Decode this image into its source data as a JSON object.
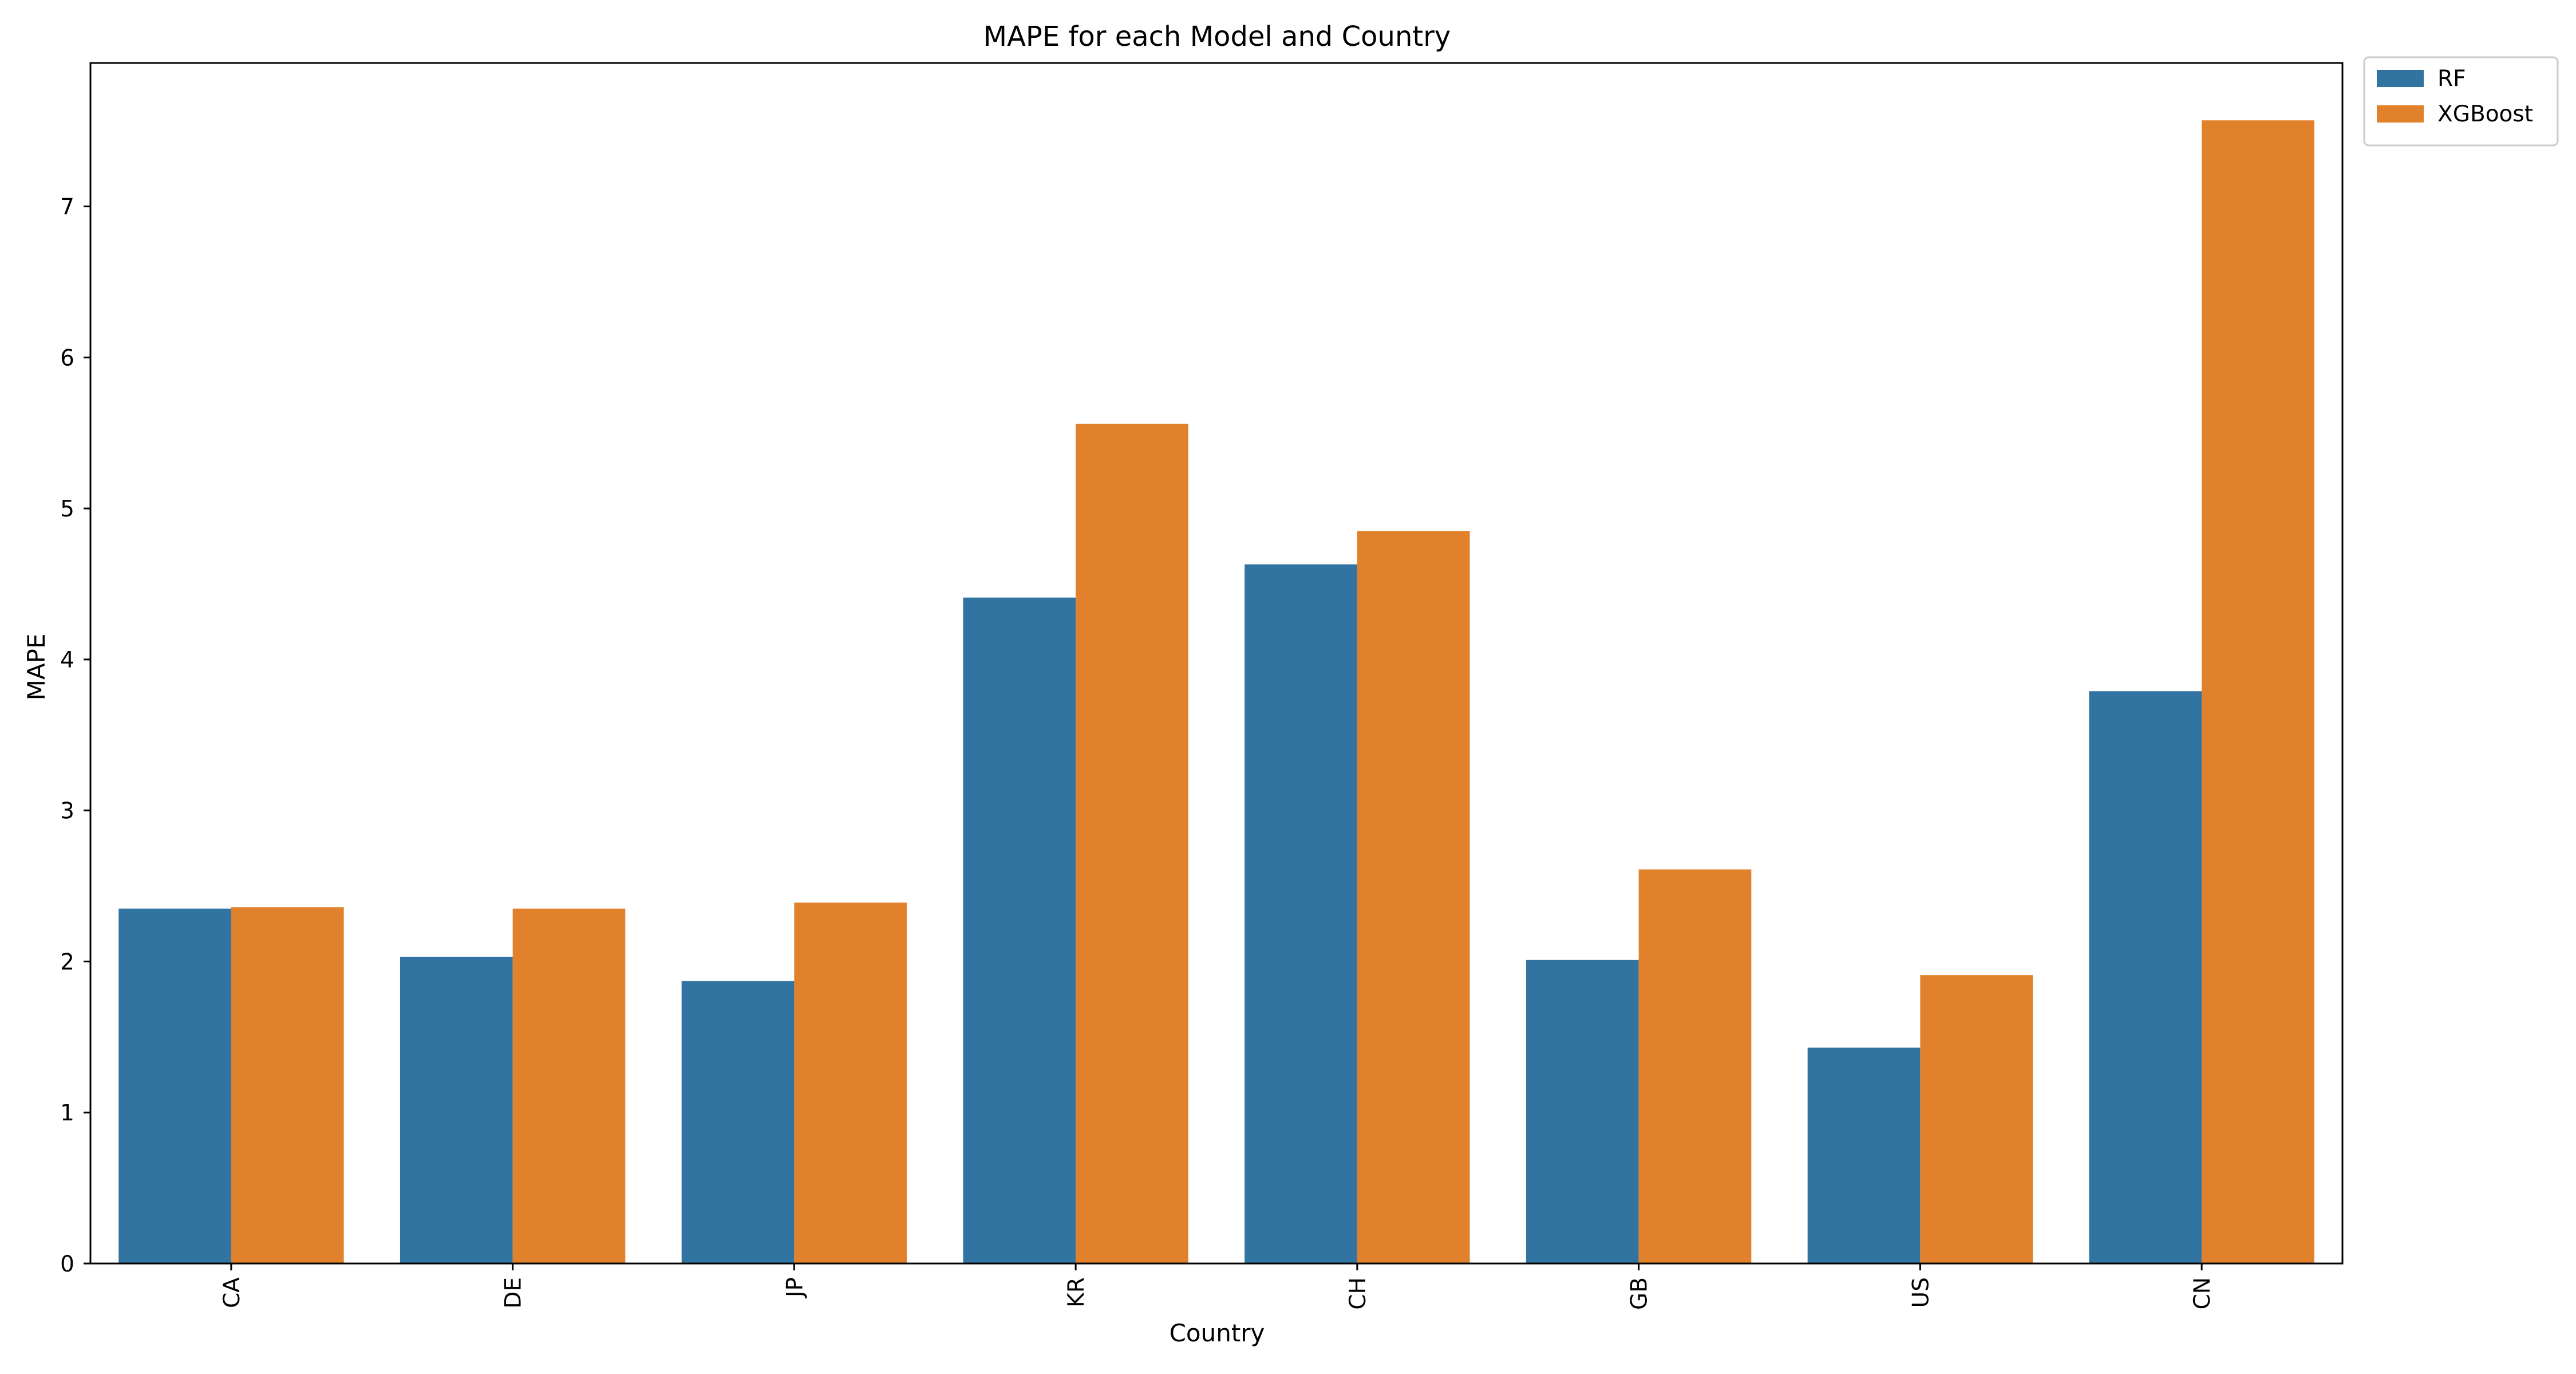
{
  "chart_data": {
    "type": "bar",
    "title": "MAPE for each Model and Country",
    "xlabel": "Country",
    "ylabel": "MAPE",
    "categories": [
      "CA",
      "DE",
      "JP",
      "KR",
      "CH",
      "GB",
      "US",
      "CN"
    ],
    "series": [
      {
        "name": "RF",
        "color": "#3274a1",
        "values": [
          2.35,
          2.03,
          1.87,
          4.41,
          4.63,
          2.01,
          1.43,
          3.79
        ]
      },
      {
        "name": "XGBoost",
        "color": "#e1812c",
        "values": [
          2.36,
          2.35,
          2.39,
          5.56,
          4.85,
          2.61,
          1.91,
          7.57
        ]
      }
    ],
    "ylim": [
      0,
      7.95
    ],
    "yticks": [
      0,
      1,
      2,
      3,
      4,
      5,
      6,
      7
    ],
    "grid": false,
    "legend_position": "outside-top-right"
  }
}
